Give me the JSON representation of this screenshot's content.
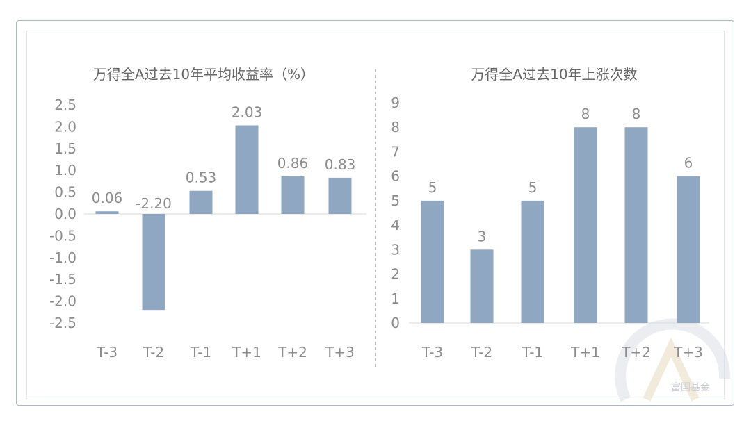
{
  "colors": {
    "bar": "#8fa7c0",
    "axis": "#d9d9d9",
    "divider": "#999999"
  },
  "watermark": {
    "text": "富国基金",
    "icon": "fund-logo-watermark-icon"
  },
  "chart_data": [
    {
      "type": "bar",
      "title": "万得全A过去10年平均收益率（%）",
      "categories": [
        "T-3",
        "T-2",
        "T-1",
        "T+1",
        "T+2",
        "T+3"
      ],
      "values": [
        0.06,
        -2.2,
        0.53,
        2.03,
        0.86,
        0.83
      ],
      "value_labels": [
        "0.06",
        "-2.20",
        "0.53",
        "2.03",
        "0.86",
        "0.83"
      ],
      "yticks": [
        "2.5",
        "2.0",
        "1.5",
        "1.0",
        "0.5",
        "0.0",
        "-0.5",
        "-1.0",
        "-1.5",
        "-2.0",
        "-2.5"
      ],
      "ylim": [
        -2.5,
        2.5
      ],
      "grid": false,
      "legend": "none"
    },
    {
      "type": "bar",
      "title": "万得全A过去10年上涨次数",
      "categories": [
        "T-3",
        "T-2",
        "T-1",
        "T+1",
        "T+2",
        "T+3"
      ],
      "values": [
        5,
        3,
        5,
        8,
        8,
        6
      ],
      "value_labels": [
        "5",
        "3",
        "5",
        "8",
        "8",
        "6"
      ],
      "yticks": [
        "9",
        "8",
        "7",
        "6",
        "5",
        "4",
        "3",
        "2",
        "1",
        "0"
      ],
      "ylim": [
        0,
        9
      ],
      "grid": false,
      "legend": "none"
    }
  ]
}
